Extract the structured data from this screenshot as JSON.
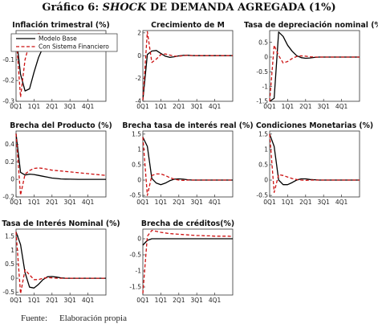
{
  "figure": {
    "title_before": "Gráfico 6: ",
    "title_italic": "SHOCK",
    "title_after": " DE DEMANDA AGREGADA (1%)",
    "source_label": "Fuente:",
    "source_text": "Elaboración propia"
  },
  "legend": {
    "entries": [
      "Modelo Base",
      "Con Sistema Financiero"
    ]
  },
  "series_style": {
    "base": {
      "color": "#000000",
      "dash": "solid"
    },
    "fin": {
      "color": "#cc1111",
      "dash": "dashed"
    }
  },
  "chart_data": [
    {
      "type": "line",
      "title": "Inflación trimestral (%)",
      "x": [
        0,
        1,
        2,
        3,
        4,
        5,
        6,
        7,
        8,
        9,
        10,
        11,
        12,
        13,
        14,
        15,
        16,
        17,
        18,
        19,
        20
      ],
      "xticks": [
        "0Q1",
        "1Q1",
        "2Q1",
        "3Q1",
        "4Q1"
      ],
      "ylim": [
        -0.3,
        0.04
      ],
      "yticks": [
        "0",
        "-0.1",
        "-0.2",
        "-0.3"
      ],
      "yticks_values": [
        0,
        -0.1,
        -0.2,
        -0.3
      ],
      "series": [
        {
          "name": "Modelo Base",
          "values": [
            0.02,
            -0.17,
            -0.25,
            -0.24,
            -0.16,
            -0.09,
            -0.04,
            -0.01,
            0.005,
            0.01,
            0.008,
            0.004,
            0.001,
            0,
            0,
            0,
            0,
            0,
            0,
            0,
            0
          ]
        },
        {
          "name": "Con Sistema Financiero",
          "values": [
            0.02,
            -0.28,
            -0.1,
            -0.02,
            0.02,
            0.025,
            0.02,
            0.01,
            0.005,
            0,
            -0.003,
            -0.002,
            0,
            0,
            0,
            0,
            0,
            0,
            0,
            0,
            0
          ]
        }
      ]
    },
    {
      "type": "line",
      "title": "Crecimiento de M",
      "x": [
        0,
        1,
        2,
        3,
        4,
        5,
        6,
        7,
        8,
        9,
        10,
        11,
        12,
        13,
        14,
        15,
        16,
        17,
        18,
        19,
        20
      ],
      "xticks": [
        "0Q1",
        "1Q1",
        "2Q1",
        "3Q1",
        "4Q1"
      ],
      "ylim": [
        -4,
        2.2
      ],
      "yticks": [
        "2",
        "0",
        "-2",
        "-4"
      ],
      "yticks_values": [
        2,
        0,
        -2,
        -4
      ],
      "series": [
        {
          "name": "Modelo Base",
          "values": [
            -3.9,
            0.1,
            0.4,
            0.45,
            0.2,
            -0.05,
            -0.15,
            -0.1,
            -0.02,
            0.02,
            0.03,
            0.01,
            0,
            0,
            0,
            0,
            0,
            0,
            0,
            0,
            0
          ]
        },
        {
          "name": "Con Sistema Financiero",
          "values": [
            -3.9,
            2.1,
            -0.6,
            -0.3,
            0.1,
            0.15,
            0.05,
            -0.05,
            -0.05,
            0,
            0.02,
            0.01,
            0,
            0,
            0,
            0,
            0,
            0,
            0,
            0,
            0
          ]
        }
      ]
    },
    {
      "type": "line",
      "title": "Tasa de depreciación nominal (%)",
      "x": [
        0,
        1,
        2,
        3,
        4,
        5,
        6,
        7,
        8,
        9,
        10,
        11,
        12,
        13,
        14,
        15,
        16,
        17,
        18,
        19,
        20
      ],
      "xticks": [
        "0Q1",
        "1Q1",
        "2Q1",
        "3Q1",
        "4Q1"
      ],
      "ylim": [
        -1.5,
        0.9
      ],
      "yticks": [
        "0.5",
        "0",
        "-0.5",
        "-1",
        "-1.5"
      ],
      "yticks_values": [
        0.5,
        0,
        -0.5,
        -1,
        -1.5
      ],
      "series": [
        {
          "name": "Modelo Base",
          "values": [
            -1.5,
            -1.4,
            0.85,
            0.7,
            0.4,
            0.2,
            0.05,
            -0.02,
            -0.04,
            -0.03,
            -0.01,
            0,
            0,
            0,
            0,
            0,
            0,
            0,
            0,
            0,
            0
          ]
        },
        {
          "name": "Con Sistema Financiero",
          "values": [
            -1.5,
            0.4,
            0.05,
            -0.2,
            -0.15,
            -0.05,
            0.02,
            0.04,
            0.03,
            0.01,
            0,
            0,
            0,
            0,
            0,
            0,
            0,
            0,
            0,
            0,
            0
          ]
        }
      ]
    },
    {
      "type": "line",
      "title": "Brecha del Producto (%)",
      "x": [
        0,
        1,
        2,
        3,
        4,
        5,
        6,
        7,
        8,
        9,
        10,
        11,
        12,
        13,
        14,
        15,
        16,
        17,
        18,
        19,
        20
      ],
      "xticks": [
        "0Q1",
        "1Q1",
        "2Q1",
        "3Q1",
        "4Q1"
      ],
      "ylim": [
        -0.2,
        0.55
      ],
      "yticks": [
        "0.4",
        "0.2",
        "0",
        "-0.2"
      ],
      "yticks_values": [
        0.4,
        0.2,
        0,
        -0.2
      ],
      "series": [
        {
          "name": "Modelo Base",
          "values": [
            0.52,
            0.08,
            0.05,
            0.06,
            0.055,
            0.045,
            0.035,
            0.025,
            0.015,
            0.01,
            0.005,
            0.003,
            0.002,
            0.001,
            0,
            0,
            0,
            0,
            0,
            0,
            0
          ]
        },
        {
          "name": "Con Sistema Financiero",
          "values": [
            0.52,
            -0.18,
            0.06,
            0.1,
            0.125,
            0.13,
            0.125,
            0.115,
            0.105,
            0.1,
            0.095,
            0.09,
            0.085,
            0.08,
            0.075,
            0.07,
            0.065,
            0.06,
            0.055,
            0.05,
            0.045
          ]
        }
      ]
    },
    {
      "type": "line",
      "title": "Brecha tasa de interés real (%)",
      "x": [
        0,
        1,
        2,
        3,
        4,
        5,
        6,
        7,
        8,
        9,
        10,
        11,
        12,
        13,
        14,
        15,
        16,
        17,
        18,
        19,
        20
      ],
      "xticks": [
        "0Q1",
        "1Q1",
        "2Q1",
        "3Q1",
        "4Q1"
      ],
      "ylim": [
        -0.55,
        1.6
      ],
      "yticks": [
        "1.5",
        "1",
        "0.5",
        "0",
        "-0.5"
      ],
      "yticks_values": [
        1.5,
        1,
        0.5,
        0,
        -0.5
      ],
      "series": [
        {
          "name": "Modelo Base",
          "values": [
            1.4,
            1.1,
            0.05,
            -0.1,
            -0.15,
            -0.1,
            -0.02,
            0.03,
            0.04,
            0.03,
            0.01,
            0,
            0,
            0,
            0,
            0,
            0,
            0,
            0,
            0,
            0
          ]
        },
        {
          "name": "Con Sistema Financiero",
          "values": [
            1.4,
            -0.5,
            0.15,
            0.2,
            0.2,
            0.15,
            0.08,
            0.03,
            0,
            -0.01,
            0,
            0,
            0,
            0,
            0,
            0,
            0,
            0,
            0,
            0,
            0
          ]
        }
      ]
    },
    {
      "type": "line",
      "title": "Condiciones Monetarias (%)",
      "x": [
        0,
        1,
        2,
        3,
        4,
        5,
        6,
        7,
        8,
        9,
        10,
        11,
        12,
        13,
        14,
        15,
        16,
        17,
        18,
        19,
        20
      ],
      "xticks": [
        "0Q1",
        "1Q1",
        "2Q1",
        "3Q1",
        "4Q1"
      ],
      "ylim": [
        -0.55,
        1.6
      ],
      "yticks": [
        "1.5",
        "1",
        "0.5",
        "0",
        "-0.5"
      ],
      "yticks_values": [
        1.5,
        1,
        0.5,
        0,
        -0.5
      ],
      "series": [
        {
          "name": "Modelo Base",
          "values": [
            1.5,
            1.1,
            0.0,
            -0.15,
            -0.15,
            -0.08,
            0,
            0.04,
            0.04,
            0.02,
            0.01,
            0,
            0,
            0,
            0,
            0,
            0,
            0,
            0,
            0,
            0
          ]
        },
        {
          "name": "Con Sistema Financiero",
          "values": [
            1.5,
            -0.4,
            0.18,
            0.15,
            0.1,
            0.05,
            0.02,
            0,
            -0.01,
            0,
            0,
            0,
            0,
            0,
            0,
            0,
            0,
            0,
            0,
            0,
            0
          ]
        }
      ]
    },
    {
      "type": "line",
      "title": "Tasa de Interés Nominal (%)",
      "x": [
        0,
        1,
        2,
        3,
        4,
        5,
        6,
        7,
        8,
        9,
        10,
        11,
        12,
        13,
        14,
        15,
        16,
        17,
        18,
        19,
        20
      ],
      "xticks": [
        "0Q1",
        "1Q1",
        "2Q1",
        "3Q1",
        "4Q1"
      ],
      "ylim": [
        -0.6,
        1.75
      ],
      "yticks": [
        "1.5",
        "1",
        "0.5",
        "0",
        "-0.5"
      ],
      "yticks_values": [
        1.5,
        1,
        0.5,
        0,
        -0.5
      ],
      "series": [
        {
          "name": "Modelo Base",
          "values": [
            1.65,
            1.2,
            0.2,
            -0.32,
            -0.35,
            -0.22,
            -0.05,
            0.05,
            0.06,
            0.04,
            0.01,
            0,
            0,
            0,
            0,
            0,
            0,
            0,
            0,
            0,
            0
          ]
        },
        {
          "name": "Con Sistema Financiero",
          "values": [
            1.65,
            -0.55,
            0.3,
            0.12,
            -0.05,
            -0.05,
            0,
            0.02,
            0.01,
            0,
            0,
            0,
            0,
            0,
            0,
            0,
            0,
            0,
            0,
            0,
            0
          ]
        }
      ]
    },
    {
      "type": "line",
      "title": "Brecha de créditos(%)",
      "x": [
        0,
        1,
        2,
        3,
        4,
        5,
        6,
        7,
        8,
        9,
        10,
        11,
        12,
        13,
        14,
        15,
        16,
        17,
        18,
        19,
        20
      ],
      "xticks": [
        "0Q1",
        "1Q1",
        "2Q1",
        "3Q1",
        "4Q1"
      ],
      "ylim": [
        -1.75,
        0.3
      ],
      "yticks": [
        "0",
        "-0.5",
        "-1",
        "-1.5"
      ],
      "yticks_values": [
        0,
        -0.5,
        -1,
        -1.5
      ],
      "series": [
        {
          "name": "Modelo Base",
          "values": [
            -0.2,
            -0.05,
            0,
            0,
            0,
            0,
            0,
            0,
            0,
            0,
            0,
            0,
            0,
            0,
            0,
            0,
            0,
            0,
            0,
            0,
            0
          ]
        },
        {
          "name": "Con Sistema Financiero",
          "values": [
            -1.7,
            0.08,
            0.26,
            0.23,
            0.2,
            0.18,
            0.16,
            0.15,
            0.14,
            0.13,
            0.12,
            0.11,
            0.1,
            0.1,
            0.09,
            0.09,
            0.08,
            0.08,
            0.08,
            0.08,
            0.07
          ]
        }
      ]
    }
  ]
}
